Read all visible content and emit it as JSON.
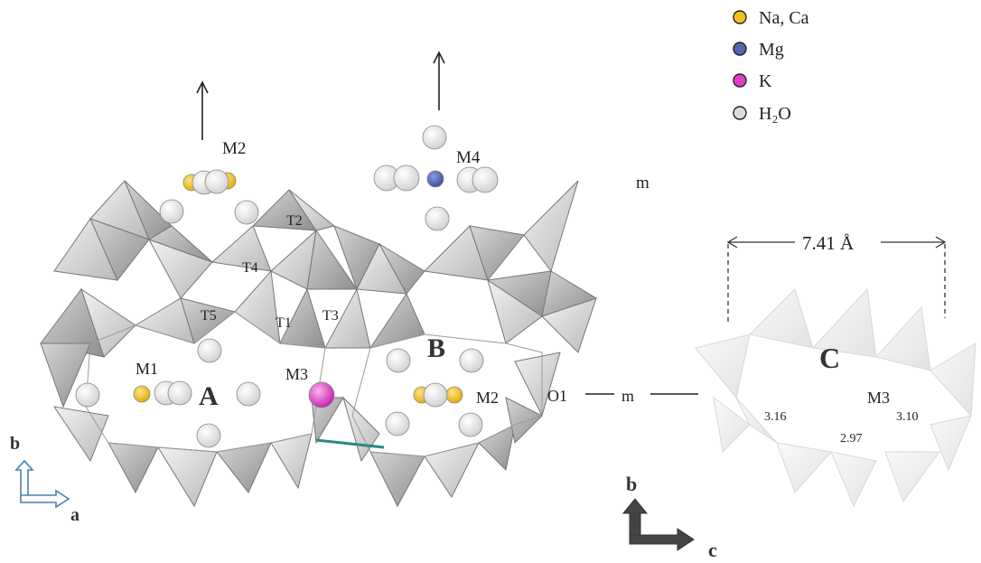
{
  "legend": {
    "items": [
      {
        "label": "Na, Ca",
        "color": "#f2c21c"
      },
      {
        "label": "Mg",
        "color": "#5566b0"
      },
      {
        "label": "K",
        "color": "#e040c8"
      },
      {
        "label": "H₂O",
        "color": "#dddddd"
      }
    ]
  },
  "labels": {
    "m2_top": "M2",
    "m4": "M4",
    "m_top": "m",
    "t2": "T2",
    "t4": "T4",
    "t5": "T5",
    "t1": "T1",
    "t3": "T3",
    "m1": "M1",
    "a_channel": "A",
    "m3_left": "M3",
    "b_channel": "B",
    "m2_bottom": "M2",
    "o1": "O1",
    "m_mid": "m",
    "c_channel": "C",
    "m3_right": "M3",
    "dist1": "3.16",
    "dist2": "3.10",
    "dist3": "2.97",
    "dimension": "7.41 Å"
  },
  "axes_left": {
    "vertical": "b",
    "horizontal": "a"
  },
  "axes_right": {
    "vertical": "b",
    "horizontal": "c"
  }
}
